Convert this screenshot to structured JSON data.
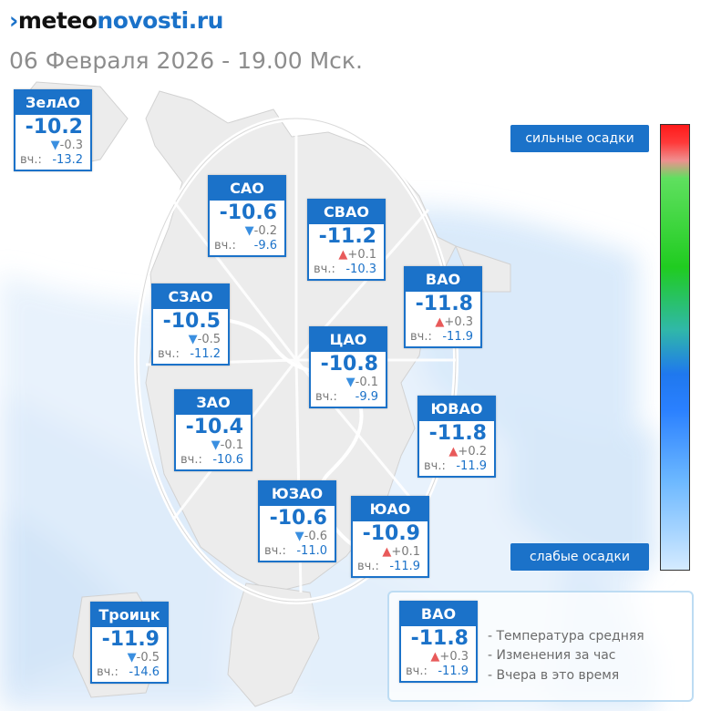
{
  "header": {
    "logo_mark": "›",
    "logo_part1": "meteo",
    "logo_part2": "novosti.ru",
    "subtitle": "06 Февраля 2026 - 19.00 Мск."
  },
  "yesterday_label": "вч.:",
  "down_arrow": "▼",
  "up_arrow": "▲",
  "districts": [
    {
      "name": "ЗелАО",
      "temp": "-10.2",
      "trend": "down",
      "change": "-0.3",
      "yesterday": "-13.2"
    },
    {
      "name": "САО",
      "temp": "-10.6",
      "trend": "down",
      "change": "-0.2",
      "yesterday": "-9.6"
    },
    {
      "name": "СВАО",
      "temp": "-11.2",
      "trend": "up",
      "change": "+0.1",
      "yesterday": "-10.3"
    },
    {
      "name": "ВАО",
      "temp": "-11.8",
      "trend": "up",
      "change": "+0.3",
      "yesterday": "-11.9"
    },
    {
      "name": "СЗАО",
      "temp": "-10.5",
      "trend": "down",
      "change": "-0.5",
      "yesterday": "-11.2"
    },
    {
      "name": "ЦАО",
      "temp": "-10.8",
      "trend": "down",
      "change": "-0.1",
      "yesterday": "-9.9"
    },
    {
      "name": "ЗАО",
      "temp": "-10.4",
      "trend": "down",
      "change": "-0.1",
      "yesterday": "-10.6"
    },
    {
      "name": "ЮВАО",
      "temp": "-11.8",
      "trend": "up",
      "change": "+0.2",
      "yesterday": "-11.9"
    },
    {
      "name": "ЮЗАО",
      "temp": "-10.6",
      "trend": "down",
      "change": "-0.6",
      "yesterday": "-11.0"
    },
    {
      "name": "ЮАО",
      "temp": "-10.9",
      "trend": "up",
      "change": "+0.1",
      "yesterday": "-11.9"
    },
    {
      "name": "Троицк",
      "temp": "-11.9",
      "trend": "down",
      "change": "-0.5",
      "yesterday": "-14.6"
    }
  ],
  "precip_scale": {
    "strong_label": "сильные осадки",
    "weak_label": "слабые осадки",
    "colors": [
      "#ff1a1a",
      "#20cc20",
      "#1f78ee",
      "#d5ebff"
    ]
  },
  "legend": {
    "card": {
      "name": "ВАО",
      "temp": "-11.8",
      "trend": "up",
      "change": "+0.3",
      "yesterday": "-11.9"
    },
    "line1": "- Температура средняя",
    "line2": "- Изменения за час",
    "line3": "- Вчера в это время"
  },
  "colors": {
    "accent": "#1b72c9",
    "trend_down": "#3a8fe0",
    "trend_up": "#e85a5a"
  }
}
